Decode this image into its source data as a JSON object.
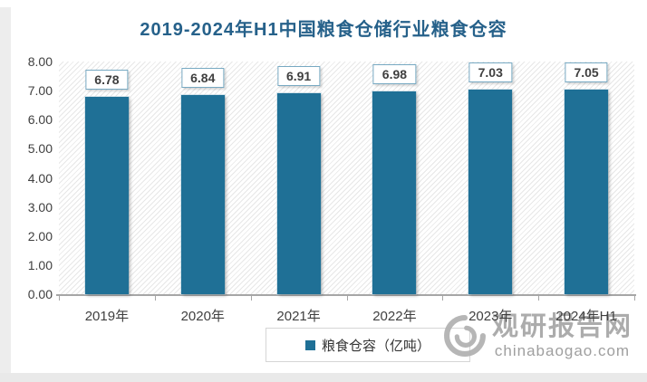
{
  "title": "2019-2024年H1中国粮食仓储行业粮食仓容",
  "chart_data": {
    "type": "bar",
    "title": "2019-2024年H1中国粮食仓储行业粮食仓容",
    "categories": [
      "2019年",
      "2020年",
      "2021年",
      "2022年",
      "2023年",
      "2024年H1"
    ],
    "values": [
      6.78,
      6.84,
      6.91,
      6.98,
      7.03,
      7.05
    ],
    "value_labels": [
      "6.78",
      "6.84",
      "6.91",
      "6.98",
      "7.03",
      "7.05"
    ],
    "series_name": "粮食仓容（亿吨）",
    "xlabel": "",
    "ylabel": "",
    "ylim": [
      0,
      8
    ],
    "ytick_step": 1,
    "grid": false,
    "legend_position": "bottom",
    "bar_color": "#1f7096",
    "plot_background": "diagonal-hatch"
  },
  "y_axis": {
    "ticks": [
      "8.00",
      "7.00",
      "6.00",
      "5.00",
      "4.00",
      "3.00",
      "2.00",
      "1.00",
      "0.00"
    ]
  },
  "legend": {
    "label": "粮食仓容（亿吨）"
  },
  "watermark": {
    "site_name": "观研报告网",
    "site_url": "chinabaogao.com"
  },
  "colors": {
    "title": "#26618a",
    "bar": "#1f7096",
    "axis_line": "#a6a6a6",
    "text": "#404040",
    "label_box_border": "#77a9c2",
    "watermark_gray": "#a8a8a8"
  }
}
